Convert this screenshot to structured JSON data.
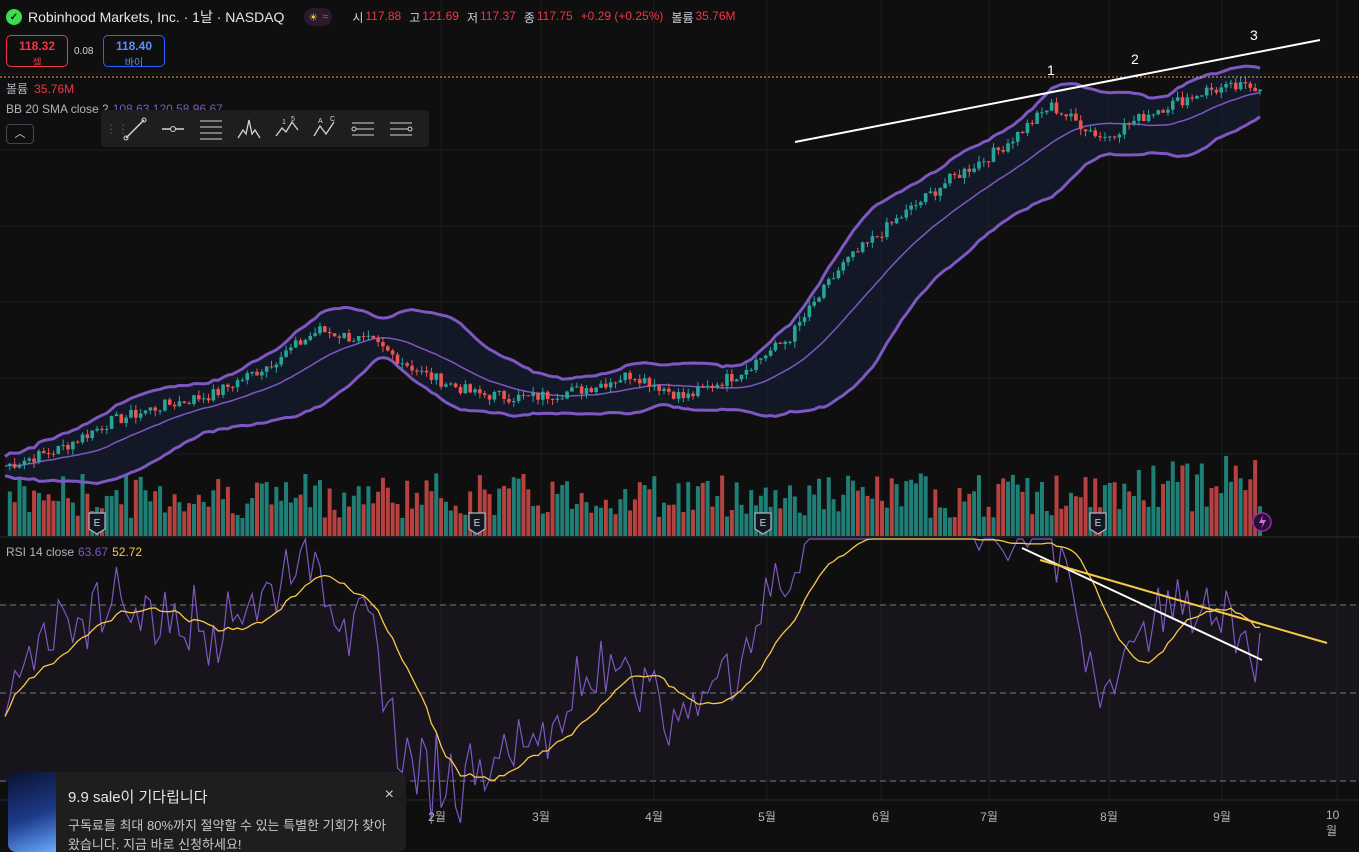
{
  "header": {
    "symbol": "Robinhood Markets, Inc. · 1날 · NASDAQ",
    "ohlc": [
      {
        "k": "시",
        "v": "117.88"
      },
      {
        "k": "고",
        "v": "121.69"
      },
      {
        "k": "저",
        "v": "117.37"
      },
      {
        "k": "종",
        "v": "117.75"
      }
    ],
    "change": "+0.29 (+0.25%)",
    "volume_key": "볼륨",
    "volume_val": "35.76M"
  },
  "trade": {
    "sell_price": "118.32",
    "sell_label": "셀",
    "spread": "0.08",
    "buy_price": "118.40",
    "buy_label": "바이"
  },
  "volume_legend": {
    "label": "볼륨",
    "value": "35.76M"
  },
  "bb_legend": {
    "label": "BB 20 SMA close 2",
    "values": "108.63  120.58  96.67"
  },
  "rsi_legend": {
    "label": "RSI 14 close",
    "rsi": "63.67",
    "ma": "52.72"
  },
  "months": [
    "2월",
    "3월",
    "4월",
    "5월",
    "6월",
    "7월",
    "8월",
    "9월",
    "10월"
  ],
  "annotations": [
    "1",
    "2",
    "3"
  ],
  "earnings_marker": "E",
  "notice": {
    "title": "9.9 sale이 기다립니다",
    "body": "구독료를 최대 80%까지 절약할 수 있는 특별한 기회가 찾아왔습니다. 지금 바로 신청하세요!",
    "close": "×"
  },
  "colors": {
    "up": "#26a69a",
    "down": "#ef5350",
    "bb": "#7e57c2",
    "rsi_ma": "#f7c948",
    "bg": "#0f0f0f"
  },
  "chart_data": {
    "type": "candlestick",
    "series": "Robinhood Markets, Inc. daily",
    "x_labels": [
      "2월",
      "3월",
      "4월",
      "5월",
      "6월",
      "7월",
      "8월",
      "9월",
      "10월"
    ],
    "close_path": [
      23,
      27,
      34,
      38,
      41,
      48,
      57,
      54,
      46,
      41,
      40,
      42,
      46,
      40,
      46,
      55,
      73,
      84,
      94,
      102,
      113,
      105,
      112,
      117,
      118
    ],
    "rsi_indicator": {
      "last": 63.67,
      "ma": 52.72,
      "bands": [
        70,
        50,
        30
      ]
    }
  }
}
